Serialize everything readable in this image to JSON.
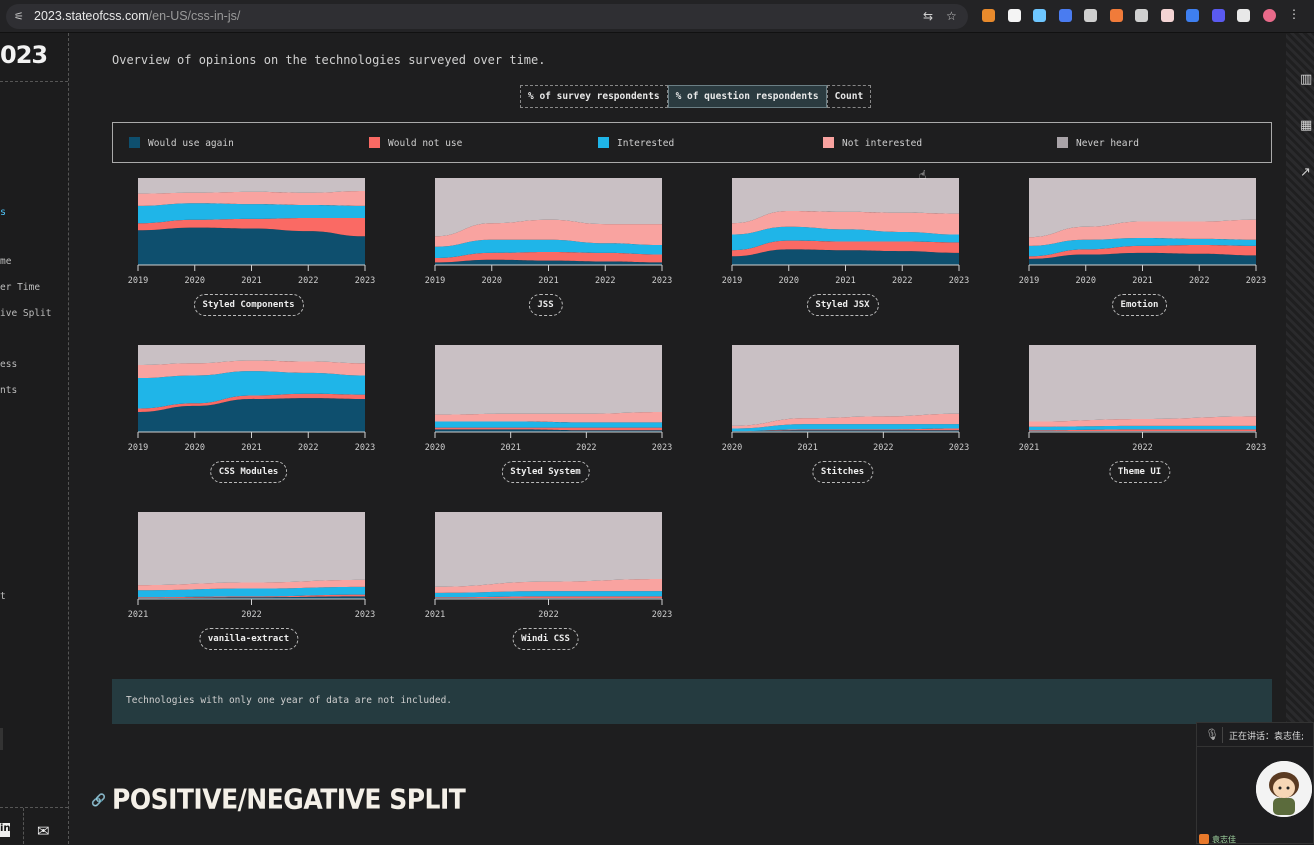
{
  "browser": {
    "url_host": "2023.stateofcss.com",
    "url_path": "/en-US/css-in-js/",
    "extensions": [
      "metamask-icon",
      "play-icon",
      "react-icon",
      "at-icon",
      "vue-icon",
      "figure-icon",
      "zero-icon",
      "doc-icon",
      "dropbox-icon",
      "zap-icon",
      "puzzle-icon",
      "profile-icon",
      "menu-icon"
    ]
  },
  "sidebar": {
    "logo": "023",
    "items": [
      {
        "label": "s",
        "active": true
      },
      {
        "label": "me"
      },
      {
        "label": "er Time"
      },
      {
        "label": "ive Split"
      },
      {
        "label": "ess"
      },
      {
        "label": "nts"
      },
      {
        "label": "t"
      }
    ],
    "linkedin_label": "in"
  },
  "main": {
    "intro": "Overview of opinions on the technologies surveyed over time.",
    "toggle": [
      {
        "label": "% of survey respondents",
        "active": false
      },
      {
        "label": "% of question respondents",
        "active": true
      },
      {
        "label": "Count",
        "active": false
      }
    ],
    "legend": [
      {
        "label": "Would use again",
        "color": "#0e4f6e"
      },
      {
        "label": "Would not use",
        "color": "#fa6a64"
      },
      {
        "label": "Interested",
        "color": "#1fb5e8"
      },
      {
        "label": "Not interested",
        "color": "#f9a3a0"
      },
      {
        "label": "Never heard",
        "color": "#a9a3a8"
      }
    ],
    "note": "Technologies with only one year of data are not included.",
    "section_title": "POSITIVE/NEGATIVE SPLIT"
  },
  "chart_data": [
    {
      "type": "area",
      "title": "Styled Components",
      "x": [
        "2019",
        "2020",
        "2021",
        "2022",
        "2023"
      ],
      "series": [
        {
          "name": "Would use again",
          "values": [
            40,
            43,
            42,
            39,
            33
          ]
        },
        {
          "name": "Would not use",
          "values": [
            8,
            9,
            11,
            15,
            21
          ]
        },
        {
          "name": "Interested",
          "values": [
            20,
            19,
            17,
            15,
            14
          ]
        },
        {
          "name": "Not interested",
          "values": [
            14,
            12,
            14,
            14,
            17
          ]
        },
        {
          "name": "Never heard",
          "values": [
            18,
            17,
            16,
            17,
            15
          ]
        }
      ]
    },
    {
      "type": "area",
      "title": "JSS",
      "x": [
        "2019",
        "2020",
        "2021",
        "2022",
        "2023"
      ],
      "series": [
        {
          "name": "Would use again",
          "values": [
            3,
            6,
            5,
            4,
            3
          ]
        },
        {
          "name": "Would not use",
          "values": [
            5,
            8,
            10,
            10,
            9
          ]
        },
        {
          "name": "Interested",
          "values": [
            13,
            15,
            14,
            11,
            11
          ]
        },
        {
          "name": "Not interested",
          "values": [
            12,
            19,
            23,
            22,
            24
          ]
        },
        {
          "name": "Never heard",
          "values": [
            67,
            52,
            48,
            53,
            53
          ]
        }
      ]
    },
    {
      "type": "area",
      "title": "Styled JSX",
      "x": [
        "2019",
        "2020",
        "2021",
        "2022",
        "2023"
      ],
      "series": [
        {
          "name": "Would use again",
          "values": [
            10,
            18,
            17,
            16,
            14
          ]
        },
        {
          "name": "Would not use",
          "values": [
            7,
            10,
            10,
            11,
            12
          ]
        },
        {
          "name": "Interested",
          "values": [
            18,
            16,
            14,
            11,
            9
          ]
        },
        {
          "name": "Not interested",
          "values": [
            13,
            18,
            20,
            22,
            24
          ]
        },
        {
          "name": "Never heard",
          "values": [
            52,
            38,
            39,
            40,
            41
          ]
        }
      ]
    },
    {
      "type": "area",
      "title": "Emotion",
      "x": [
        "2019",
        "2020",
        "2021",
        "2022",
        "2023"
      ],
      "series": [
        {
          "name": "Would use again",
          "values": [
            7,
            12,
            14,
            13,
            11
          ]
        },
        {
          "name": "Would not use",
          "values": [
            3,
            6,
            8,
            10,
            11
          ]
        },
        {
          "name": "Interested",
          "values": [
            12,
            11,
            9,
            7,
            7
          ]
        },
        {
          "name": "Not interested",
          "values": [
            10,
            15,
            19,
            20,
            23
          ]
        },
        {
          "name": "Never heard",
          "values": [
            68,
            56,
            50,
            50,
            48
          ]
        }
      ]
    },
    {
      "type": "area",
      "title": "CSS Modules",
      "x": [
        "2019",
        "2020",
        "2021",
        "2022",
        "2023"
      ],
      "series": [
        {
          "name": "Would use again",
          "values": [
            23,
            30,
            38,
            39,
            38
          ]
        },
        {
          "name": "Would not use",
          "values": [
            4,
            3,
            4,
            5,
            5
          ]
        },
        {
          "name": "Interested",
          "values": [
            35,
            32,
            28,
            24,
            22
          ]
        },
        {
          "name": "Not interested",
          "values": [
            15,
            14,
            12,
            13,
            14
          ]
        },
        {
          "name": "Never heard",
          "values": [
            23,
            21,
            18,
            19,
            21
          ]
        }
      ]
    },
    {
      "type": "area",
      "title": "Styled System",
      "x": [
        "2020",
        "2021",
        "2022",
        "2023"
      ],
      "series": [
        {
          "name": "Would use again",
          "values": [
            3,
            3,
            2,
            2
          ]
        },
        {
          "name": "Would not use",
          "values": [
            2,
            2,
            3,
            3
          ]
        },
        {
          "name": "Interested",
          "values": [
            7,
            7,
            6,
            6
          ]
        },
        {
          "name": "Not interested",
          "values": [
            8,
            9,
            10,
            12
          ]
        },
        {
          "name": "Never heard",
          "values": [
            80,
            79,
            79,
            77
          ]
        }
      ]
    },
    {
      "type": "area",
      "title": "Stitches",
      "x": [
        "2020",
        "2021",
        "2022",
        "2023"
      ],
      "series": [
        {
          "name": "Would use again",
          "values": [
            1,
            2,
            2,
            2
          ]
        },
        {
          "name": "Would not use",
          "values": [
            0,
            1,
            1,
            2
          ]
        },
        {
          "name": "Interested",
          "values": [
            3,
            6,
            6,
            5
          ]
        },
        {
          "name": "Not interested",
          "values": [
            3,
            7,
            9,
            12
          ]
        },
        {
          "name": "Never heard",
          "values": [
            93,
            84,
            82,
            79
          ]
        }
      ]
    },
    {
      "type": "area",
      "title": "Theme UI",
      "x": [
        "2021",
        "2022",
        "2023"
      ],
      "series": [
        {
          "name": "Would use again",
          "values": [
            1,
            1,
            1
          ]
        },
        {
          "name": "Would not use",
          "values": [
            1,
            2,
            2
          ]
        },
        {
          "name": "Interested",
          "values": [
            4,
            4,
            4
          ]
        },
        {
          "name": "Not interested",
          "values": [
            6,
            8,
            11
          ]
        },
        {
          "name": "Never heard",
          "values": [
            88,
            85,
            82
          ]
        }
      ]
    },
    {
      "type": "area",
      "title": "vanilla-extract",
      "x": [
        "2021",
        "2022",
        "2023"
      ],
      "series": [
        {
          "name": "Would use again",
          "values": [
            1,
            2,
            3
          ]
        },
        {
          "name": "Would not use",
          "values": [
            1,
            1,
            2
          ]
        },
        {
          "name": "Interested",
          "values": [
            8,
            9,
            9
          ]
        },
        {
          "name": "Not interested",
          "values": [
            6,
            7,
            8
          ]
        },
        {
          "name": "Never heard",
          "values": [
            84,
            81,
            78
          ]
        }
      ]
    },
    {
      "type": "area",
      "title": "Windi CSS",
      "x": [
        "2021",
        "2022",
        "2023"
      ],
      "series": [
        {
          "name": "Would use again",
          "values": [
            1,
            1,
            1
          ]
        },
        {
          "name": "Would not use",
          "values": [
            1,
            2,
            2
          ]
        },
        {
          "name": "Interested",
          "values": [
            5,
            6,
            6
          ]
        },
        {
          "name": "Not interested",
          "values": [
            7,
            11,
            14
          ]
        },
        {
          "name": "Never heard",
          "values": [
            86,
            80,
            77
          ]
        }
      ]
    }
  ],
  "overlay": {
    "speaking_text": "正在讲话：袁志佳;",
    "footer_text": "袁志佳"
  }
}
